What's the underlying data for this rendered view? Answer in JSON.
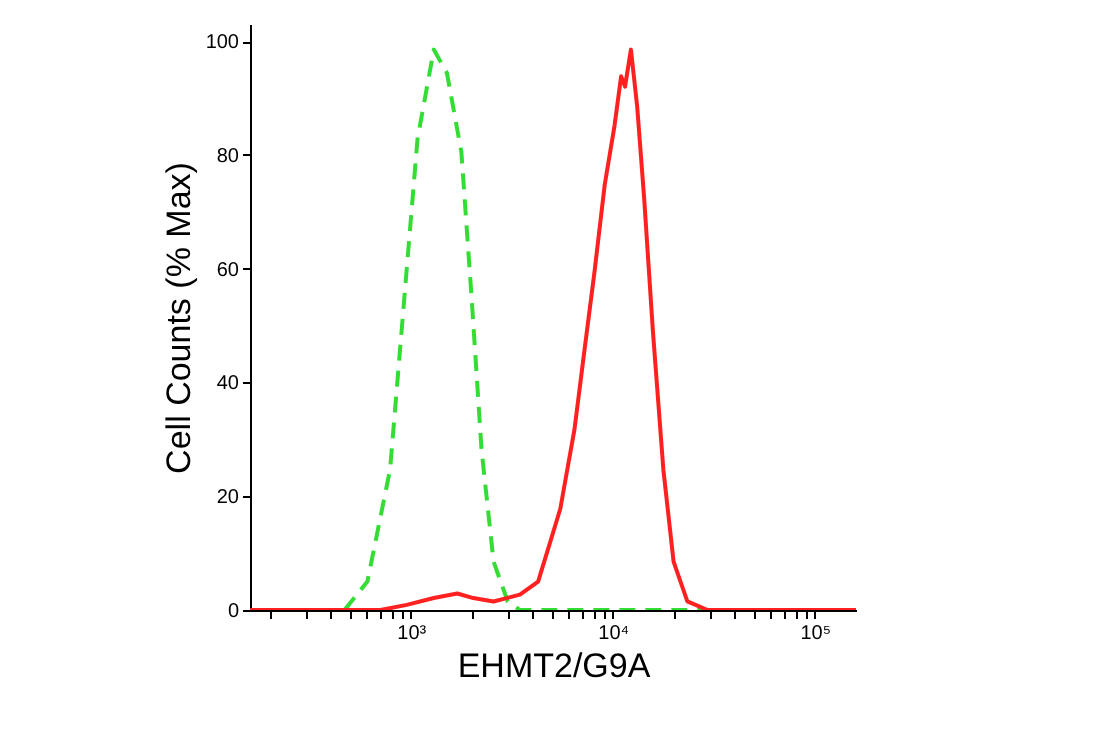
{
  "chart_data": {
    "type": "line",
    "xlabel": "EHMT2/G9A",
    "ylabel": "Cell Counts (% Max)",
    "log": "x",
    "xlim": [
      160,
      160000
    ],
    "xticks": [
      {
        "value": 200,
        "label": null
      },
      {
        "value": 300,
        "label": null
      },
      {
        "value": 400,
        "label": null
      },
      {
        "value": 500,
        "label": null
      },
      {
        "value": 600,
        "label": null
      },
      {
        "value": 700,
        "label": null
      },
      {
        "value": 800,
        "label": null
      },
      {
        "value": 900,
        "label": null
      },
      {
        "value": 1000,
        "label": "10³"
      },
      {
        "value": 2000,
        "label": null
      },
      {
        "value": 3000,
        "label": null
      },
      {
        "value": 4000,
        "label": null
      },
      {
        "value": 5000,
        "label": null
      },
      {
        "value": 6000,
        "label": null
      },
      {
        "value": 7000,
        "label": null
      },
      {
        "value": 8000,
        "label": null
      },
      {
        "value": 9000,
        "label": null
      },
      {
        "value": 10000,
        "label": "10⁴"
      },
      {
        "value": 20000,
        "label": null
      },
      {
        "value": 30000,
        "label": null
      },
      {
        "value": 40000,
        "label": null
      },
      {
        "value": 50000,
        "label": null
      },
      {
        "value": 60000,
        "label": null
      },
      {
        "value": 70000,
        "label": null
      },
      {
        "value": 80000,
        "label": null
      },
      {
        "value": 90000,
        "label": null
      },
      {
        "value": 100000,
        "label": "10⁵"
      }
    ],
    "ylim": [
      0,
      103
    ],
    "yticks": [
      0,
      20,
      40,
      60,
      80,
      100
    ],
    "marker": "none",
    "series": [
      {
        "color": "#33dd33",
        "line_style": "dashed",
        "x": [
          470,
          610,
          790,
          930,
          1080,
          1300,
          1510,
          1780,
          2000,
          2240,
          2570,
          3020,
          3470,
          31600
        ],
        "values": [
          0,
          5,
          24.7,
          55,
          82.8,
          98.5,
          94.4,
          80.5,
          55,
          28.2,
          8.5,
          1.5,
          0,
          0
        ]
      },
      {
        "color": "#ff2020",
        "line_style": "solid",
        "x": [
          160,
          708,
          955,
          1300,
          1700,
          2040,
          2570,
          3470,
          4270,
          4790,
          5500,
          6460,
          7240,
          8130,
          9120,
          10200,
          11000,
          11500,
          12300,
          13200,
          14300,
          15800,
          17800,
          20000,
          23400,
          29500,
          160000
        ],
        "values": [
          0,
          0,
          0.9,
          2.1,
          2.9,
          2.1,
          1.5,
          2.7,
          5,
          10.8,
          17.8,
          31.7,
          45.6,
          59.6,
          74.7,
          85.1,
          93.8,
          92,
          98.5,
          88.6,
          72.4,
          49,
          24.7,
          8.5,
          1.5,
          0,
          0
        ]
      }
    ]
  }
}
